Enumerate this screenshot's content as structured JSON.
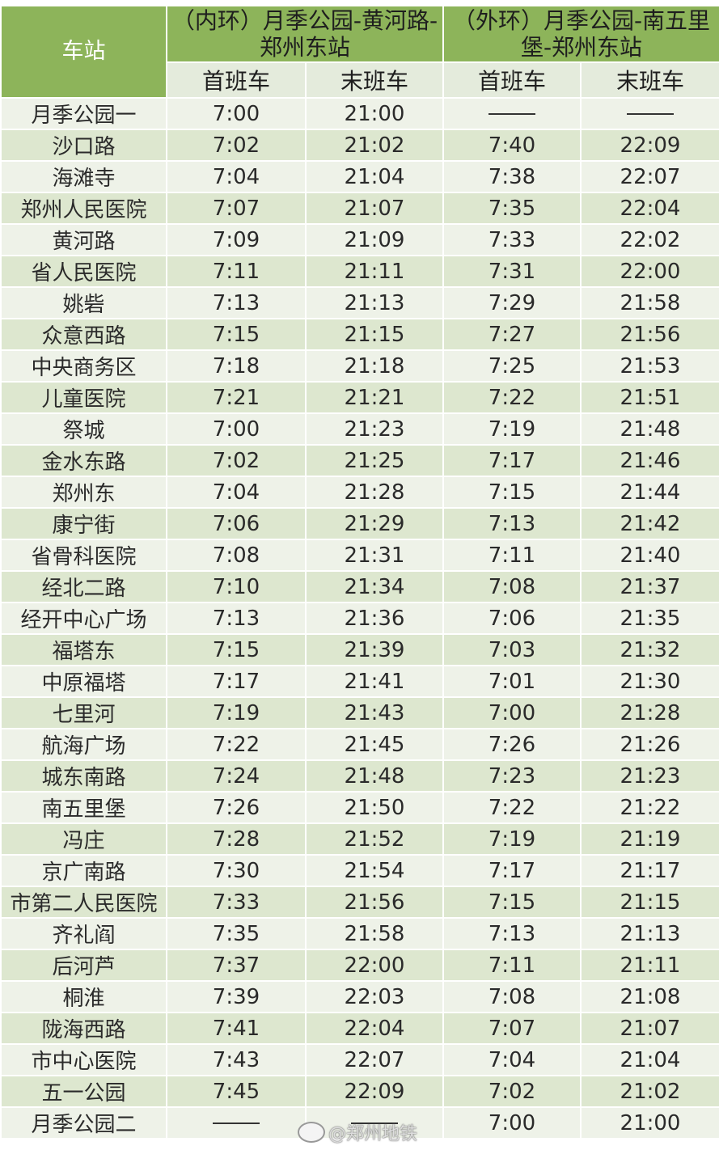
{
  "header": {
    "station_label": "车站",
    "inner_loop": "（内环）月季公园-黄河路-郑州东站",
    "outer_loop": "（外环）月季公园-南五里堡-郑州东站",
    "first_train": "首班车",
    "last_train": "末班车"
  },
  "rows": [
    [
      "月季公园一",
      "7:00",
      "21:00",
      "——",
      "——"
    ],
    [
      "沙口路",
      "7:02",
      "21:02",
      "7:40",
      "22:09"
    ],
    [
      "海滩寺",
      "7:04",
      "21:04",
      "7:38",
      "22:07"
    ],
    [
      "郑州人民医院",
      "7:07",
      "21:07",
      "7:35",
      "22:04"
    ],
    [
      "黄河路",
      "7:09",
      "21:09",
      "7:33",
      "22:02"
    ],
    [
      "省人民医院",
      "7:11",
      "21:11",
      "7:31",
      "22:00"
    ],
    [
      "姚砦",
      "7:13",
      "21:13",
      "7:29",
      "21:58"
    ],
    [
      "众意西路",
      "7:15",
      "21:15",
      "7:27",
      "21:56"
    ],
    [
      "中央商务区",
      "7:18",
      "21:18",
      "7:25",
      "21:53"
    ],
    [
      "儿童医院",
      "7:21",
      "21:21",
      "7:22",
      "21:51"
    ],
    [
      "祭城",
      "7:00",
      "21:23",
      "7:19",
      "21:48"
    ],
    [
      "金水东路",
      "7:02",
      "21:25",
      "7:17",
      "21:46"
    ],
    [
      "郑州东",
      "7:04",
      "21:28",
      "7:15",
      "21:44"
    ],
    [
      "康宁街",
      "7:06",
      "21:29",
      "7:13",
      "21:42"
    ],
    [
      "省骨科医院",
      "7:08",
      "21:31",
      "7:11",
      "21:40"
    ],
    [
      "经北二路",
      "7:10",
      "21:34",
      "7:08",
      "21:37"
    ],
    [
      "经开中心广场",
      "7:13",
      "21:36",
      "7:06",
      "21:35"
    ],
    [
      "福塔东",
      "7:15",
      "21:39",
      "7:03",
      "21:32"
    ],
    [
      "中原福塔",
      "7:17",
      "21:41",
      "7:01",
      "21:30"
    ],
    [
      "七里河",
      "7:19",
      "21:43",
      "7:00",
      "21:28"
    ],
    [
      "航海广场",
      "7:22",
      "21:45",
      "7:26",
      "21:26"
    ],
    [
      "城东南路",
      "7:24",
      "21:48",
      "7:23",
      "21:23"
    ],
    [
      "南五里堡",
      "7:26",
      "21:50",
      "7:22",
      "21:22"
    ],
    [
      "冯庄",
      "7:28",
      "21:52",
      "7:19",
      "21:19"
    ],
    [
      "京广南路",
      "7:30",
      "21:54",
      "7:17",
      "21:17"
    ],
    [
      "市第二人民医院",
      "7:33",
      "21:56",
      "7:15",
      "21:15"
    ],
    [
      "齐礼阎",
      "7:35",
      "21:58",
      "7:13",
      "21:13"
    ],
    [
      "后河芦",
      "7:37",
      "22:00",
      "7:11",
      "21:11"
    ],
    [
      "桐淮",
      "7:39",
      "22:03",
      "7:08",
      "21:08"
    ],
    [
      "陇海西路",
      "7:41",
      "22:04",
      "7:07",
      "21:07"
    ],
    [
      "市中心医院",
      "7:43",
      "22:07",
      "7:04",
      "21:04"
    ],
    [
      "五一公园",
      "7:45",
      "22:09",
      "7:02",
      "21:02"
    ],
    [
      "月季公园二",
      "——",
      "——",
      "7:00",
      "21:00"
    ]
  ],
  "watermark": "@郑州地铁",
  "colors": {
    "header_green": "#8db45a",
    "row_light": "#eef2e8",
    "row_green": "#dde7cf"
  }
}
